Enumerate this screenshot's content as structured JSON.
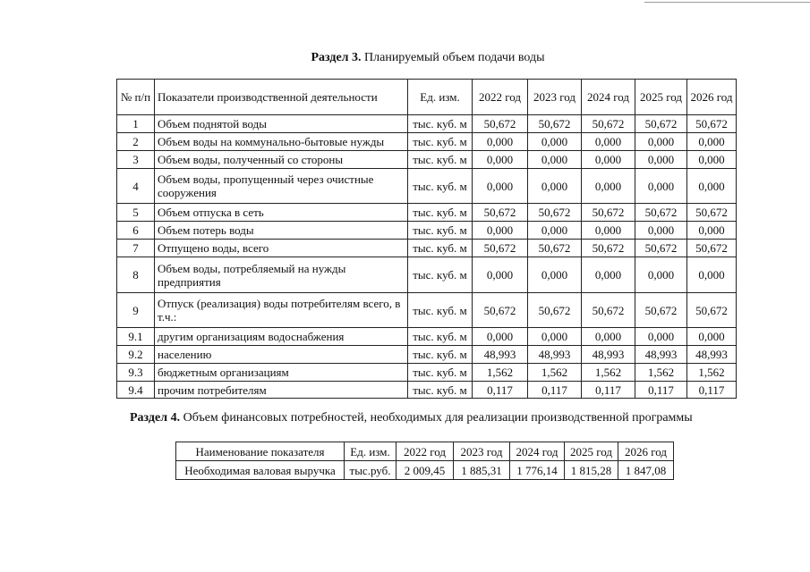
{
  "section3": {
    "title_bold": "Раздел 3.",
    "title_rest": " Планируемый объем подачи воды",
    "headers": {
      "num": "№ п/п",
      "indicator": "Показатели производственной деятельности",
      "unit": "Ед. изм.",
      "years": [
        "2022 год",
        "2023 год",
        "2024 год",
        "2025 год",
        "2026 год"
      ]
    },
    "rows": [
      {
        "num": "1",
        "name": "Объем поднятой воды",
        "unit": "тыс. куб. м",
        "values": [
          "50,672",
          "50,672",
          "50,672",
          "50,672",
          "50,672"
        ]
      },
      {
        "num": "2",
        "name": "Объем воды на коммунально-бытовые нужды",
        "unit": "тыс. куб. м",
        "values": [
          "0,000",
          "0,000",
          "0,000",
          "0,000",
          "0,000"
        ]
      },
      {
        "num": "3",
        "name": "Объем воды, полученный со стороны",
        "unit": "тыс. куб. м",
        "values": [
          "0,000",
          "0,000",
          "0,000",
          "0,000",
          "0,000"
        ]
      },
      {
        "num": "4",
        "name": "Объем воды, пропущенный через очистные сооружения",
        "unit": "тыс. куб. м",
        "values": [
          "0,000",
          "0,000",
          "0,000",
          "0,000",
          "0,000"
        ]
      },
      {
        "num": "5",
        "name": "Объем отпуска в сеть",
        "unit": "тыс. куб. м",
        "values": [
          "50,672",
          "50,672",
          "50,672",
          "50,672",
          "50,672"
        ]
      },
      {
        "num": "6",
        "name": "Объем потерь воды",
        "unit": "тыс. куб. м",
        "values": [
          "0,000",
          "0,000",
          "0,000",
          "0,000",
          "0,000"
        ]
      },
      {
        "num": "7",
        "name": "Отпущено воды, всего",
        "unit": "тыс. куб. м",
        "values": [
          "50,672",
          "50,672",
          "50,672",
          "50,672",
          "50,672"
        ]
      },
      {
        "num": "8",
        "name": "Объем воды, потребляемый на нужды предприятия",
        "unit": "тыс. куб. м",
        "values": [
          "0,000",
          "0,000",
          "0,000",
          "0,000",
          "0,000"
        ]
      },
      {
        "num": "9",
        "name": "Отпуск (реализация) воды потребителям всего, в т.ч.:",
        "unit": "тыс. куб. м",
        "values": [
          "50,672",
          "50,672",
          "50,672",
          "50,672",
          "50,672"
        ]
      },
      {
        "num": "9.1",
        "name": "другим организациям водоснабжения",
        "unit": "тыс. куб. м",
        "values": [
          "0,000",
          "0,000",
          "0,000",
          "0,000",
          "0,000"
        ]
      },
      {
        "num": "9.2",
        "name": "населению",
        "unit": "тыс. куб. м",
        "values": [
          "48,993",
          "48,993",
          "48,993",
          "48,993",
          "48,993"
        ]
      },
      {
        "num": "9.3",
        "name": "бюджетным организациям",
        "unit": "тыс. куб. м",
        "values": [
          "1,562",
          "1,562",
          "1,562",
          "1,562",
          "1,562"
        ]
      },
      {
        "num": "9.4",
        "name": "прочим потребителям",
        "unit": "тыс. куб. м",
        "values": [
          "0,117",
          "0,117",
          "0,117",
          "0,117",
          "0,117"
        ]
      }
    ]
  },
  "section4": {
    "title_bold": "Раздел 4.",
    "title_rest": " Объем финансовых потребностей, необходимых для реализации производственной программы",
    "headers": [
      "Наименование показателя",
      "Ед. изм.",
      "2022 год",
      "2023 год",
      "2024 год",
      "2025 год",
      "2026 год"
    ],
    "row": [
      "Необходимая валовая выручка",
      "тыс.руб.",
      "2 009,45",
      "1 885,31",
      "1 776,14",
      "1 815,28",
      "1 847,08"
    ]
  }
}
